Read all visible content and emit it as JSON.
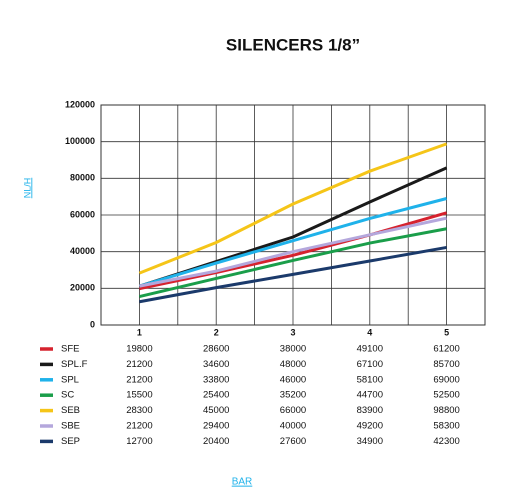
{
  "chart_data": {
    "type": "line",
    "title": "SILENCERS 1/8”",
    "y_label": "NL/H",
    "x_label": "BAR",
    "x": [
      1,
      2,
      3,
      4,
      5
    ],
    "xlim": [
      0.5,
      5.5
    ],
    "ylim": [
      0,
      120000
    ],
    "yticks": [
      0,
      20000,
      40000,
      60000,
      80000,
      100000,
      120000
    ],
    "grid": true,
    "series": [
      {
        "name": "SFE",
        "color": "#d6222e",
        "values": [
          19800,
          28600,
          38000,
          49100,
          61200
        ]
      },
      {
        "name": "SPL.F",
        "color": "#1a1a1a",
        "values": [
          21200,
          34600,
          48000,
          67100,
          85700
        ]
      },
      {
        "name": "SPL",
        "color": "#1fb2ea",
        "values": [
          21200,
          33800,
          46000,
          58100,
          69000
        ]
      },
      {
        "name": "SC",
        "color": "#1a9e4a",
        "values": [
          15500,
          25400,
          35200,
          44700,
          52500
        ]
      },
      {
        "name": "SEB",
        "color": "#f5c518",
        "values": [
          28300,
          45000,
          66000,
          83900,
          98800
        ]
      },
      {
        "name": "SBE",
        "color": "#b4a7dc",
        "values": [
          21200,
          29400,
          40000,
          49200,
          58300
        ]
      },
      {
        "name": "SEP",
        "color": "#1b3a6b",
        "values": [
          12700,
          20400,
          27600,
          34900,
          42300
        ]
      }
    ]
  }
}
